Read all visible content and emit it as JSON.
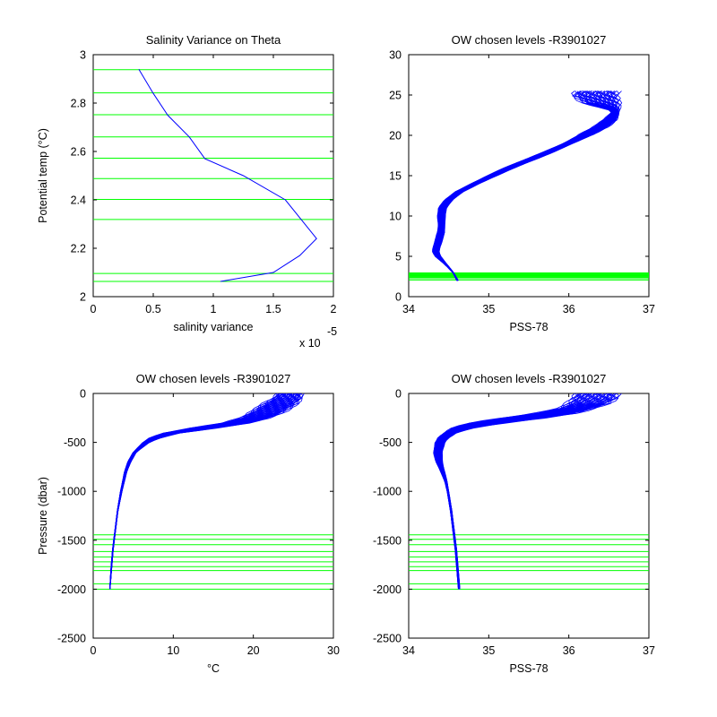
{
  "figure": {
    "colors": {
      "profile": "#0000ff",
      "levels": "#00ff00",
      "axes": "#000000"
    }
  },
  "chart_data": [
    {
      "type": "line",
      "title": "Salinity Variance on Theta",
      "xlabel": "salinity variance",
      "x_exponent": "x 10",
      "x_exponent_power": "-5",
      "ylabel": "Potential temp (°C)",
      "xlim": [
        0,
        2
      ],
      "ylim": [
        2,
        3
      ],
      "xticks": [
        "0",
        "0.5",
        "1",
        "1.5",
        "2"
      ],
      "yticks": [
        "2",
        "2.2",
        "2.4",
        "2.6",
        "2.8",
        "3"
      ],
      "series": [
        {
          "x": [
            1.06,
            1.5,
            1.72,
            1.86,
            1.6,
            1.25,
            0.93,
            0.8,
            0.62,
            0.5,
            0.38
          ],
          "y": [
            2.063,
            2.1,
            2.17,
            2.24,
            2.4,
            2.5,
            2.57,
            2.66,
            2.75,
            2.84,
            2.94
          ]
        }
      ],
      "level_lines_y": [
        2.063,
        2.096,
        2.319,
        2.402,
        2.488,
        2.572,
        2.66,
        2.752,
        2.842,
        2.938
      ]
    },
    {
      "type": "line",
      "title": "OW chosen levels -R3901027",
      "xlabel": "PSS-78",
      "ylabel": "",
      "xlim": [
        34,
        37
      ],
      "ylim": [
        0,
        30
      ],
      "xticks": [
        "34",
        "35",
        "36",
        "37"
      ],
      "yticks": [
        "0",
        "5",
        "10",
        "15",
        "20",
        "25",
        "30"
      ],
      "profile_envelope": {
        "y": [
          2,
          3,
          4,
          5,
          5.5,
          6,
          7,
          8,
          9,
          10,
          11,
          12,
          13,
          14,
          15,
          16,
          17,
          18,
          19,
          20,
          21,
          22,
          23,
          24,
          25,
          25.5
        ],
        "x_min": [
          34.6,
          34.55,
          34.45,
          34.33,
          34.3,
          34.3,
          34.33,
          34.36,
          34.37,
          34.36,
          34.37,
          34.45,
          34.58,
          34.78,
          34.98,
          35.2,
          35.45,
          35.7,
          35.93,
          36.12,
          36.3,
          36.45,
          36.55,
          36.2,
          36.05,
          36.1
        ],
        "x_max": [
          34.62,
          34.56,
          34.48,
          34.4,
          34.38,
          34.39,
          34.42,
          34.45,
          34.45,
          34.46,
          34.47,
          34.55,
          34.68,
          34.88,
          35.1,
          35.33,
          35.58,
          35.83,
          36.05,
          36.28,
          36.48,
          36.6,
          36.63,
          36.62,
          36.6,
          36.6
        ]
      },
      "level_lines_y": [
        2.063,
        2.096,
        2.319,
        2.402,
        2.488,
        2.572,
        2.66,
        2.752,
        2.842,
        2.938
      ]
    },
    {
      "type": "line",
      "title": "OW chosen levels -R3901027",
      "xlabel": "°C",
      "ylabel": "Pressure (dbar)",
      "xlim": [
        0,
        30
      ],
      "ylim": [
        -2500,
        0
      ],
      "xticks": [
        "0",
        "10",
        "20",
        "30"
      ],
      "yticks": [
        "-2500",
        "-2000",
        "-1500",
        "-1000",
        "-500",
        "0"
      ],
      "profile_envelope": {
        "y": [
          -2000,
          -1800,
          -1600,
          -1400,
          -1200,
          -1000,
          -800,
          -700,
          -600,
          -500,
          -450,
          -400,
          -380,
          -350,
          -320,
          -300,
          -250,
          -200,
          -150,
          -100,
          -50,
          0
        ],
        "x_min": [
          2.06,
          2.2,
          2.4,
          2.7,
          3.0,
          3.4,
          3.9,
          4.3,
          5.0,
          6.2,
          7.2,
          9.0,
          10.5,
          12.5,
          15.0,
          16.5,
          18.5,
          19.5,
          20.5,
          21.5,
          22.5,
          23.0
        ],
        "x_max": [
          2.1,
          2.3,
          2.5,
          2.8,
          3.1,
          3.6,
          4.2,
          4.7,
          5.4,
          7.0,
          8.5,
          11.0,
          13.0,
          15.5,
          18.0,
          19.5,
          22.0,
          23.5,
          24.5,
          25.5,
          26.0,
          26.0
        ]
      },
      "level_lines_y": [
        -1445,
        -1490,
        -1545,
        -1615,
        -1670,
        -1720,
        -1770,
        -1810,
        -1945,
        -2000
      ]
    },
    {
      "type": "line",
      "title": "OW chosen levels -R3901027",
      "xlabel": "PSS-78",
      "ylabel": "",
      "xlim": [
        34,
        37
      ],
      "ylim": [
        -2500,
        0
      ],
      "xticks": [
        "34",
        "35",
        "36",
        "37"
      ],
      "yticks": [
        "-2500",
        "-2000",
        "-1500",
        "-1000",
        "-500",
        "0"
      ],
      "profile_envelope": {
        "y": [
          -2000,
          -1800,
          -1600,
          -1400,
          -1200,
          -1000,
          -900,
          -800,
          -700,
          -600,
          -500,
          -450,
          -400,
          -350,
          -300,
          -250,
          -200,
          -150,
          -100,
          -50,
          0
        ],
        "x_min": [
          34.62,
          34.6,
          34.58,
          34.55,
          34.52,
          34.48,
          34.45,
          34.4,
          34.34,
          34.31,
          34.33,
          34.38,
          34.45,
          34.55,
          34.8,
          35.2,
          35.6,
          35.9,
          36.0,
          36.05,
          36.1
        ],
        "x_max": [
          34.64,
          34.62,
          34.6,
          34.57,
          34.54,
          34.5,
          34.48,
          34.45,
          34.42,
          34.42,
          34.45,
          34.5,
          34.6,
          34.8,
          35.2,
          35.7,
          36.1,
          36.3,
          36.5,
          36.6,
          36.6
        ]
      },
      "level_lines_y": [
        -1445,
        -1490,
        -1545,
        -1615,
        -1670,
        -1720,
        -1770,
        -1810,
        -1945,
        -2000
      ]
    }
  ]
}
